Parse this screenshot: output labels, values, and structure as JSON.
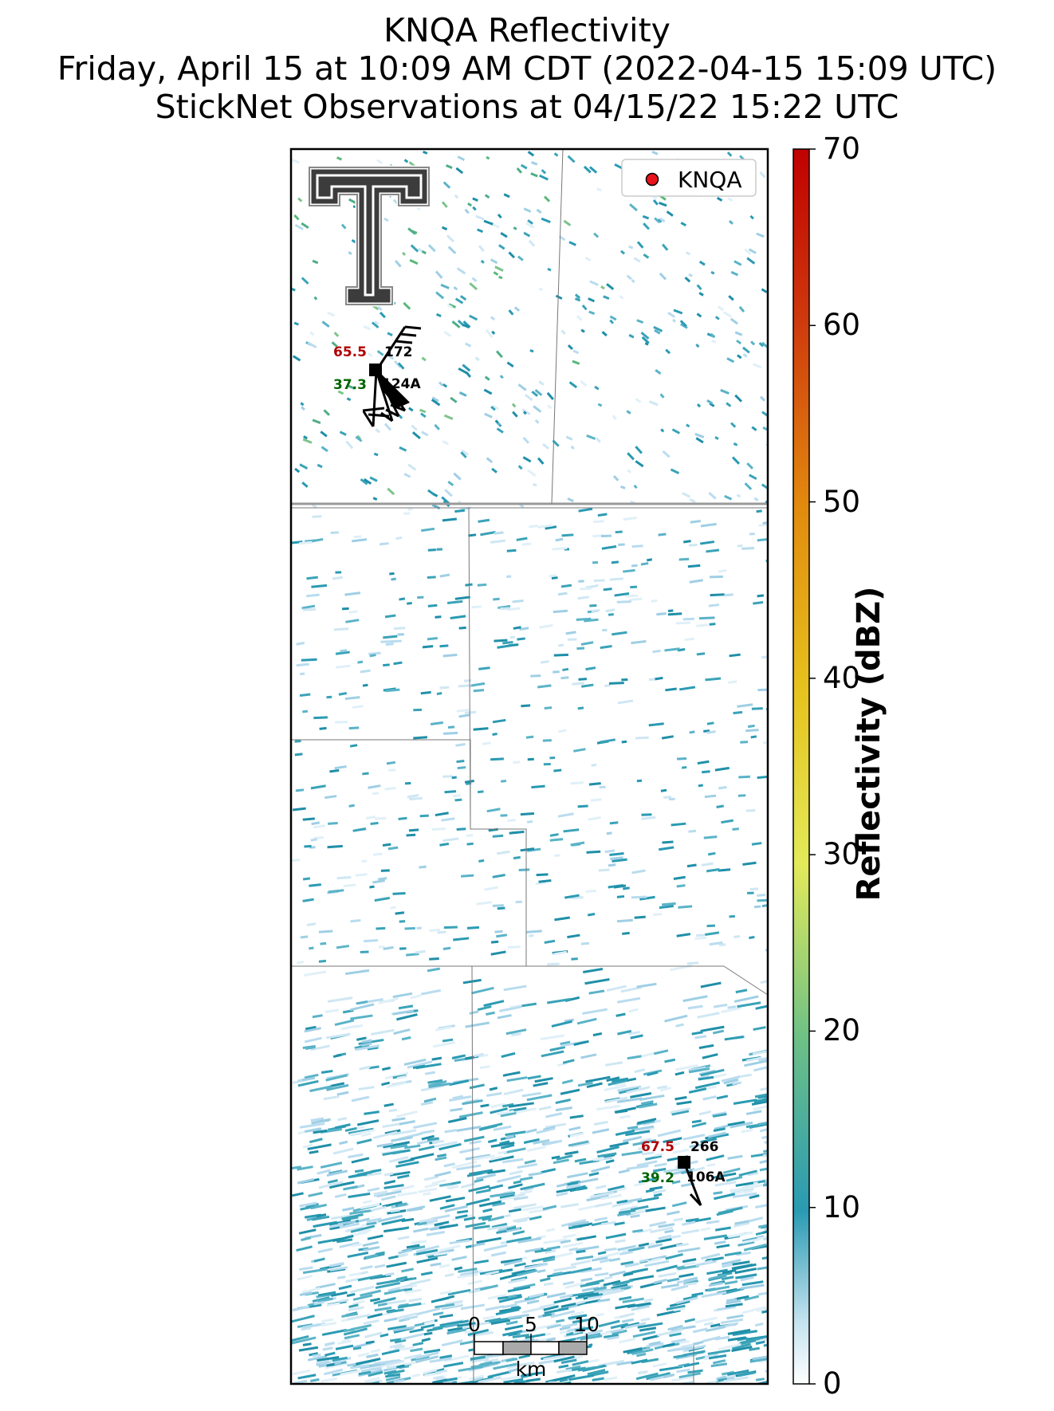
{
  "title": {
    "line1": "KNQA Reflectivity",
    "line2": "Friday, April 15 at 10:09 AM CDT (2022-04-15 15:09 UTC)",
    "line3": "StickNet Observations at 04/15/22 15:22 UTC"
  },
  "legend": {
    "label": "KNQA",
    "marker_color": "#e8131b"
  },
  "logo": {
    "text": "T",
    "name": "Texas Tech double-T logo"
  },
  "colorbar": {
    "label": "Reflectivity (dBZ)",
    "ticks": [
      "0",
      "10",
      "20",
      "30",
      "40",
      "50",
      "60",
      "70"
    ],
    "range": [
      0,
      70
    ]
  },
  "stations": [
    {
      "id": "124A",
      "temperature": "65.5",
      "dewpoint": "37.3",
      "direction": "172",
      "temp_color": "#b00000",
      "dew_color": "#006400"
    },
    {
      "id": "106A",
      "temperature": "67.5",
      "dewpoint": "39.2",
      "direction": "266",
      "temp_color": "#b00000",
      "dew_color": "#006400"
    }
  ],
  "scalebar": {
    "ticks": [
      "0",
      "5",
      "10"
    ],
    "unit": "km"
  },
  "colors": {
    "echo_teal": "#2a9ab3",
    "echo_light": "#b9dcef",
    "echo_green": "#59b87a",
    "boundary": "#777777"
  }
}
